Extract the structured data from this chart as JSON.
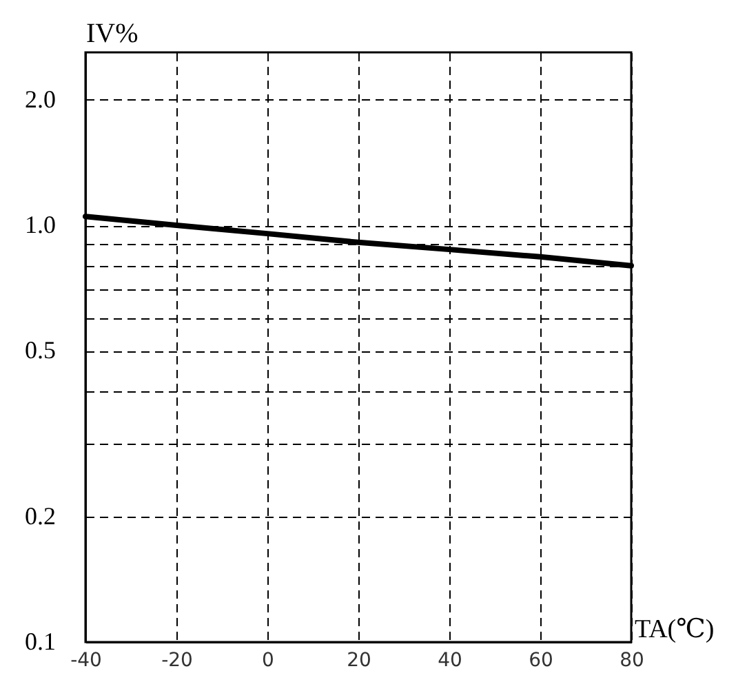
{
  "chart_data": {
    "type": "line",
    "xlabel": "TA(℃)",
    "ylabel": "IV%",
    "x": [
      -40,
      -20,
      0,
      20,
      40,
      60,
      80
    ],
    "series": [
      {
        "color": "#000000",
        "values": [
          1.05,
          1.0,
          0.955,
          0.91,
          0.875,
          0.84,
          0.8
        ]
      }
    ],
    "xlim": [
      -40,
      80
    ],
    "xticks": [
      -40,
      -20,
      0,
      20,
      40,
      60,
      80
    ],
    "ylim": [
      0.1,
      2.6
    ],
    "yticks": [
      {
        "value": 0.1,
        "label": "0.1"
      },
      {
        "value": 0.2,
        "label": "0.2"
      },
      {
        "value": 0.3,
        "label": null
      },
      {
        "value": 0.4,
        "label": null
      },
      {
        "value": 0.5,
        "label": "0.5"
      },
      {
        "value": 0.6,
        "label": null
      },
      {
        "value": 0.7,
        "label": null
      },
      {
        "value": 0.8,
        "label": null
      },
      {
        "value": 0.9,
        "label": null
      },
      {
        "value": 1,
        "label": "1.0"
      },
      {
        "value": 2,
        "label": "2.0"
      }
    ],
    "log": "y",
    "grid": true,
    "marker": "none",
    "line_style": "solid"
  }
}
